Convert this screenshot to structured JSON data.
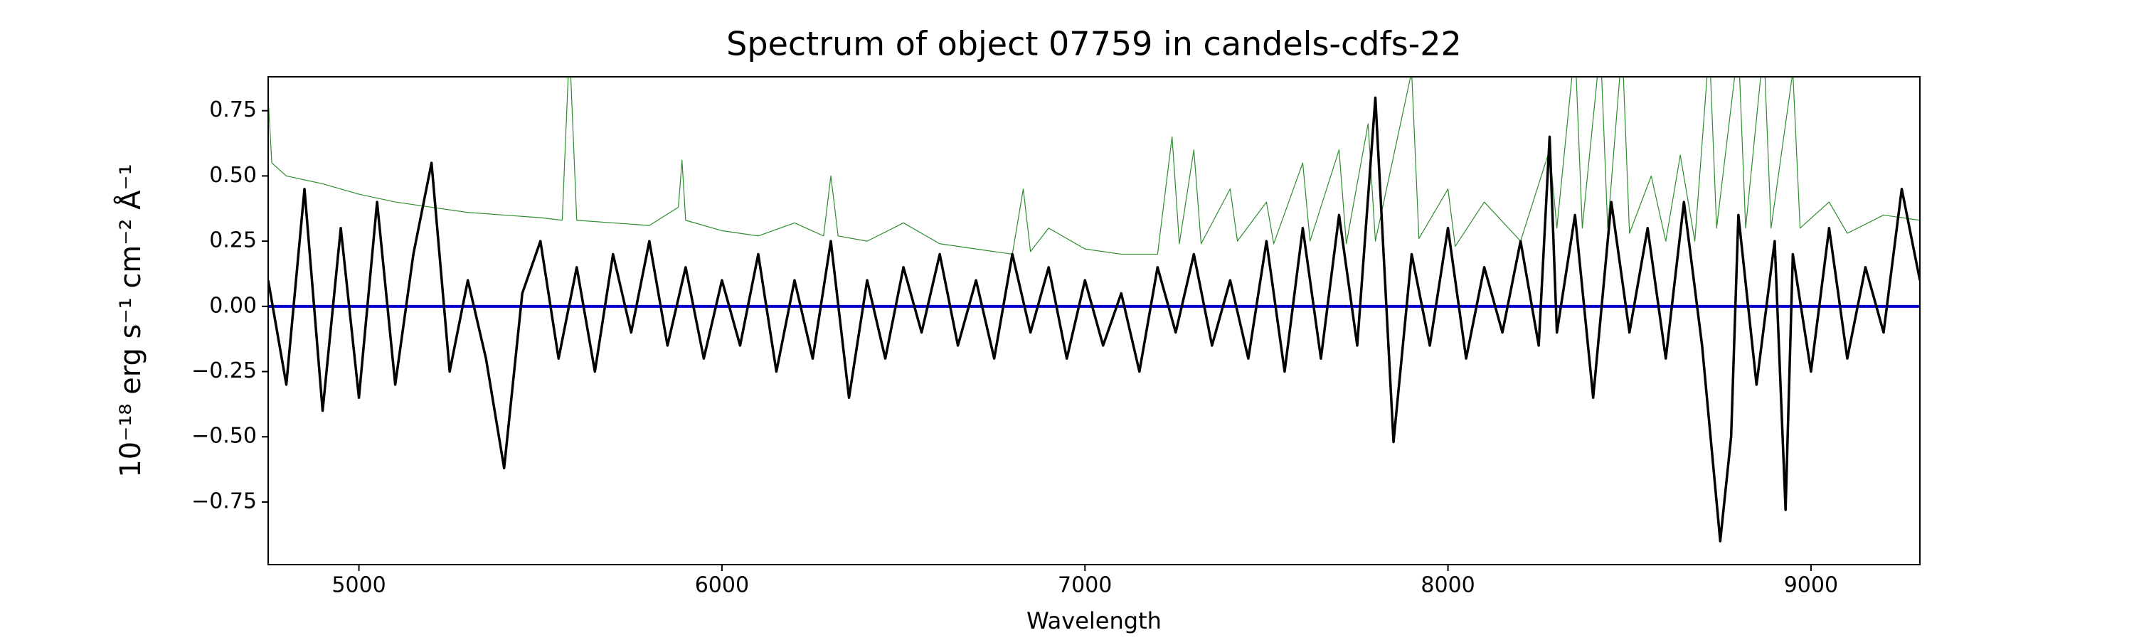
{
  "chart_data": {
    "type": "line",
    "title": "Spectrum of object 07759 in candels-cdfs-22",
    "x_label": "Wavelength",
    "y_label": "10⁻¹⁸ erg s⁻¹ cm⁻² Å⁻¹",
    "xlim": [
      4750,
      9300
    ],
    "ylim": [
      -0.99,
      0.88
    ],
    "xticks": [
      5000,
      6000,
      7000,
      8000,
      9000
    ],
    "yticks": [
      {
        "value": -0.75,
        "label": "−0.75"
      },
      {
        "value": -0.5,
        "label": "−0.50"
      },
      {
        "value": -0.25,
        "label": "−0.25"
      },
      {
        "value": 0,
        "label": "0.00"
      },
      {
        "value": 0.25,
        "label": "0.25"
      },
      {
        "value": 0.5,
        "label": "0.50"
      },
      {
        "value": 0.75,
        "label": "0.75"
      }
    ],
    "grid": false,
    "series": [
      {
        "color": "#2e8b2e",
        "width": 1.2,
        "x": [
          4750,
          4760,
          4800,
          4900,
          5000,
          5100,
          5200,
          5300,
          5400,
          5500,
          5560,
          5580,
          5600,
          5700,
          5800,
          5880,
          5890,
          5900,
          6000,
          6100,
          6200,
          6280,
          6300,
          6320,
          6400,
          6500,
          6600,
          6700,
          6800,
          6830,
          6850,
          6900,
          7000,
          7100,
          7200,
          7240,
          7260,
          7300,
          7320,
          7400,
          7420,
          7500,
          7520,
          7600,
          7620,
          7700,
          7720,
          7780,
          7800,
          7900,
          7920,
          8000,
          8020,
          8100,
          8200,
          8280,
          8300,
          8350,
          8370,
          8420,
          8440,
          8480,
          8500,
          8560,
          8600,
          8640,
          8680,
          8720,
          8740,
          8800,
          8820,
          8870,
          8890,
          8950,
          8970,
          9050,
          9100,
          9200,
          9300
        ],
        "values": [
          0.8,
          0.55,
          0.5,
          0.47,
          0.43,
          0.4,
          0.38,
          0.36,
          0.35,
          0.34,
          0.33,
          1.0,
          0.33,
          0.32,
          0.31,
          0.38,
          0.56,
          0.33,
          0.29,
          0.27,
          0.32,
          0.27,
          0.5,
          0.27,
          0.25,
          0.32,
          0.24,
          0.22,
          0.2,
          0.45,
          0.21,
          0.3,
          0.22,
          0.2,
          0.2,
          0.65,
          0.24,
          0.6,
          0.24,
          0.45,
          0.25,
          0.4,
          0.24,
          0.55,
          0.25,
          0.6,
          0.24,
          0.7,
          0.25,
          0.9,
          0.26,
          0.45,
          0.23,
          0.4,
          0.25,
          0.6,
          0.3,
          1.0,
          0.3,
          1.0,
          0.3,
          1.0,
          0.28,
          0.5,
          0.25,
          0.58,
          0.25,
          1.0,
          0.3,
          1.0,
          0.3,
          1.0,
          0.3,
          0.9,
          0.3,
          0.4,
          0.28,
          0.35,
          0.33
        ]
      },
      {
        "color": "#0000cc",
        "width": 4,
        "x": [
          4750,
          9300
        ],
        "values": [
          0,
          0
        ]
      },
      {
        "color": "#000000",
        "width": 3.5,
        "x": [
          4750,
          4800,
          4850,
          4900,
          4950,
          5000,
          5050,
          5100,
          5150,
          5200,
          5250,
          5300,
          5350,
          5400,
          5450,
          5500,
          5550,
          5600,
          5650,
          5700,
          5750,
          5800,
          5850,
          5900,
          5950,
          6000,
          6050,
          6100,
          6150,
          6200,
          6250,
          6300,
          6350,
          6400,
          6450,
          6500,
          6550,
          6600,
          6650,
          6700,
          6750,
          6800,
          6850,
          6900,
          6950,
          7000,
          7050,
          7100,
          7150,
          7200,
          7250,
          7300,
          7350,
          7400,
          7450,
          7500,
          7550,
          7600,
          7650,
          7700,
          7750,
          7800,
          7850,
          7900,
          7950,
          8000,
          8050,
          8100,
          8150,
          8200,
          8250,
          8280,
          8300,
          8350,
          8400,
          8450,
          8500,
          8550,
          8600,
          8650,
          8700,
          8750,
          8780,
          8800,
          8850,
          8900,
          8930,
          8950,
          9000,
          9050,
          9100,
          9150,
          9200,
          9250,
          9300
        ],
        "values": [
          0.1,
          -0.3,
          0.45,
          -0.4,
          0.3,
          -0.35,
          0.4,
          -0.3,
          0.2,
          0.55,
          -0.25,
          0.1,
          -0.2,
          -0.62,
          0.05,
          0.25,
          -0.2,
          0.15,
          -0.25,
          0.2,
          -0.1,
          0.25,
          -0.15,
          0.15,
          -0.2,
          0.1,
          -0.15,
          0.2,
          -0.25,
          0.1,
          -0.2,
          0.25,
          -0.35,
          0.1,
          -0.2,
          0.15,
          -0.1,
          0.2,
          -0.15,
          0.1,
          -0.2,
          0.2,
          -0.1,
          0.15,
          -0.2,
          0.1,
          -0.15,
          0.05,
          -0.25,
          0.15,
          -0.1,
          0.2,
          -0.15,
          0.1,
          -0.2,
          0.25,
          -0.25,
          0.3,
          -0.2,
          0.35,
          -0.15,
          0.8,
          -0.52,
          0.2,
          -0.15,
          0.3,
          -0.2,
          0.15,
          -0.1,
          0.25,
          -0.15,
          0.65,
          -0.1,
          0.35,
          -0.35,
          0.4,
          -0.1,
          0.3,
          -0.2,
          0.4,
          -0.15,
          -0.9,
          -0.5,
          0.35,
          -0.3,
          0.25,
          -0.78,
          0.2,
          -0.25,
          0.3,
          -0.2,
          0.15,
          -0.1,
          0.45,
          0.1
        ]
      }
    ]
  }
}
